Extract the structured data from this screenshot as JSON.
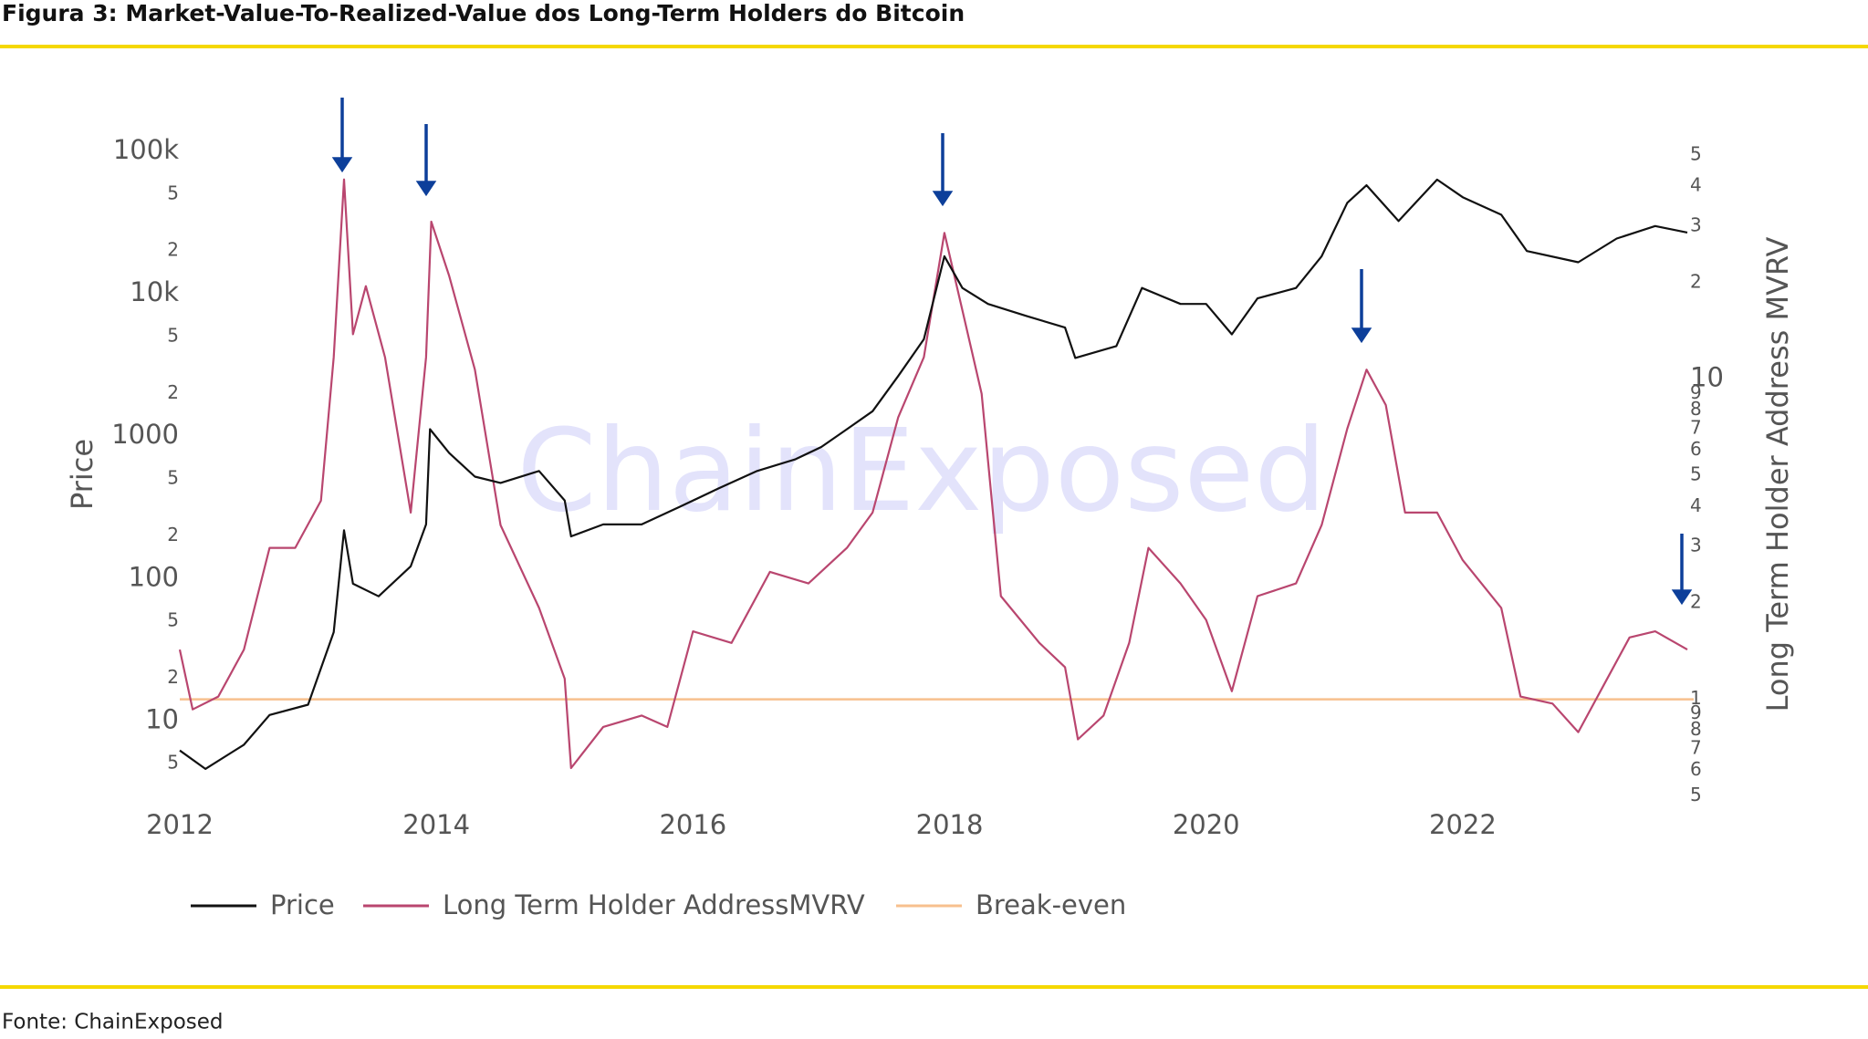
{
  "chart_data": {
    "type": "line",
    "title": "Figura 3: Market-Value-To-Realized-Value dos Long-Term Holders do Bitcoin",
    "source": "Fonte: ChainExposed",
    "watermark": "ChainExposed",
    "y_label": "Price",
    "y2_label": "Long Term Holder Address MVRV",
    "ylog": true,
    "y2log": true,
    "xlim": [
      2012,
      2023.8
    ],
    "xticks": [
      2012,
      2014,
      2016,
      2018,
      2020,
      2022
    ],
    "ylim": [
      3.47,
      114500
    ],
    "yticks": [
      {
        "value": 100000,
        "label": "100k"
      },
      {
        "value": 50000,
        "label": "5"
      },
      {
        "value": 20000,
        "label": "2"
      },
      {
        "value": 10000,
        "label": "10k"
      },
      {
        "value": 5000,
        "label": "5"
      },
      {
        "value": 2000,
        "label": "2"
      },
      1000,
      {
        "value": 500,
        "label": "5"
      },
      {
        "value": 200,
        "label": "2"
      },
      100,
      {
        "value": 50,
        "label": "5"
      },
      {
        "value": 20,
        "label": "2"
      },
      10,
      5
    ],
    "y2lim": [
      0.535,
      54.5
    ],
    "y2ticks": [
      {
        "value": 50,
        "label": "5"
      },
      {
        "value": 40,
        "label": "4"
      },
      {
        "value": 30,
        "label": "3"
      },
      {
        "value": 20,
        "label": "2"
      },
      10,
      9,
      8,
      7,
      6,
      5,
      4,
      3,
      2,
      1,
      {
        "value": 0.9,
        "label": "9"
      },
      {
        "value": 0.8,
        "label": "8"
      },
      {
        "value": 0.7,
        "label": "7"
      },
      {
        "value": 0.6,
        "label": "6"
      },
      {
        "value": 0.5,
        "label": "5"
      }
    ],
    "series": [
      {
        "name": "Price",
        "color": "#111111",
        "axis": "y",
        "x": [
          2012.0,
          2012.2,
          2012.5,
          2012.7,
          2013.0,
          2013.2,
          2013.28,
          2013.35,
          2013.55,
          2013.8,
          2013.92,
          2013.95,
          2014.1,
          2014.3,
          2014.5,
          2014.8,
          2015.0,
          2015.05,
          2015.3,
          2015.6,
          2015.9,
          2016.2,
          2016.5,
          2016.8,
          2017.0,
          2017.2,
          2017.4,
          2017.6,
          2017.8,
          2017.96,
          2018.1,
          2018.3,
          2018.6,
          2018.9,
          2018.98,
          2019.3,
          2019.5,
          2019.8,
          2020.0,
          2020.2,
          2020.4,
          2020.7,
          2020.9,
          2021.1,
          2021.25,
          2021.5,
          2021.8,
          2022.0,
          2022.3,
          2022.5,
          2022.9,
          2023.2,
          2023.5,
          2023.75
        ],
        "values": [
          6.2,
          4.6,
          6.8,
          11,
          13,
          42,
          218,
          92,
          75,
          122,
          240,
          1120,
          763,
          520,
          470,
          570,
          354,
          198,
          240,
          240,
          320,
          430,
          570,
          690,
          840,
          1120,
          1500,
          2650,
          4800,
          18400,
          11000,
          8500,
          7000,
          5800,
          3550,
          4300,
          11000,
          8500,
          8500,
          5200,
          9300,
          11000,
          18400,
          43700,
          58000,
          32500,
          63500,
          47800,
          36000,
          20000,
          16700,
          24500,
          30000,
          27000
        ]
      },
      {
        "name": "Long Term Holder AddressMVRV",
        "color": "#b9466f",
        "axis": "y2",
        "x": [
          2012.0,
          2012.1,
          2012.3,
          2012.5,
          2012.7,
          2012.9,
          2013.1,
          2013.2,
          2013.28,
          2013.35,
          2013.45,
          2013.6,
          2013.8,
          2013.92,
          2013.96,
          2014.1,
          2014.3,
          2014.5,
          2014.8,
          2015.0,
          2015.05,
          2015.3,
          2015.6,
          2015.8,
          2016.0,
          2016.3,
          2016.6,
          2016.9,
          2017.2,
          2017.4,
          2017.6,
          2017.8,
          2017.96,
          2018.1,
          2018.25,
          2018.4,
          2018.7,
          2018.9,
          2019.0,
          2019.2,
          2019.4,
          2019.55,
          2019.8,
          2020.0,
          2020.2,
          2020.4,
          2020.7,
          2020.9,
          2021.1,
          2021.25,
          2021.4,
          2021.55,
          2021.8,
          2022.0,
          2022.3,
          2022.45,
          2022.7,
          2022.9,
          2023.1,
          2023.3,
          2023.5,
          2023.75
        ],
        "values": [
          1.43,
          0.93,
          1.02,
          1.43,
          2.97,
          2.97,
          4.17,
          11.7,
          42,
          13.8,
          19.5,
          11.7,
          3.83,
          11.7,
          31,
          21,
          10.7,
          3.5,
          1.93,
          1.16,
          0.61,
          0.82,
          0.89,
          0.82,
          1.63,
          1.5,
          2.5,
          2.3,
          2.97,
          3.83,
          7.6,
          11.7,
          28.6,
          16.4,
          9,
          2.1,
          1.5,
          1.26,
          0.75,
          0.89,
          1.5,
          2.97,
          2.3,
          1.77,
          1.06,
          2.1,
          2.3,
          3.5,
          7,
          10.7,
          8.3,
          3.83,
          3.83,
          2.72,
          1.93,
          1.02,
          0.97,
          0.79,
          1.11,
          1.56,
          1.63,
          1.43
        ]
      },
      {
        "name": "Break-even",
        "color": "#f7c08e",
        "axis": "y2",
        "x": [
          2012.0,
          2023.8
        ],
        "values": [
          1,
          1
        ]
      }
    ]
  }
}
